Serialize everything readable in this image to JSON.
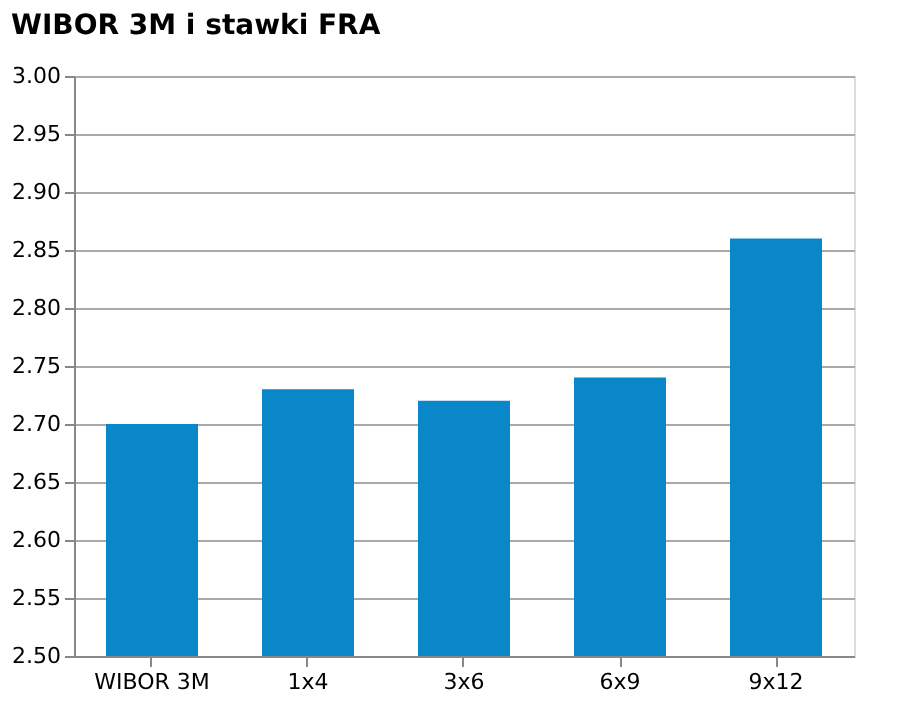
{
  "chart_data": {
    "type": "bar",
    "title": "WIBOR 3M i stawki FRA",
    "categories": [
      "WIBOR 3M",
      "1x4",
      "3x6",
      "6x9",
      "9x12"
    ],
    "values": [
      2.7,
      2.73,
      2.72,
      2.74,
      2.86
    ],
    "color": "#0a87c9",
    "ylim": [
      2.5,
      3.0
    ],
    "yticks": [
      {
        "value": 2.5,
        "label": "2.50"
      },
      2.55,
      {
        "value": 2.6,
        "label": "2.60"
      },
      2.65,
      {
        "value": 2.7,
        "label": "2.70"
      },
      2.75,
      {
        "value": 2.8,
        "label": "2.80"
      },
      2.85,
      {
        "value": 2.9,
        "label": "2.90"
      },
      2.95,
      {
        "value": 3.0,
        "label": "3.00"
      }
    ],
    "grid": "y"
  }
}
